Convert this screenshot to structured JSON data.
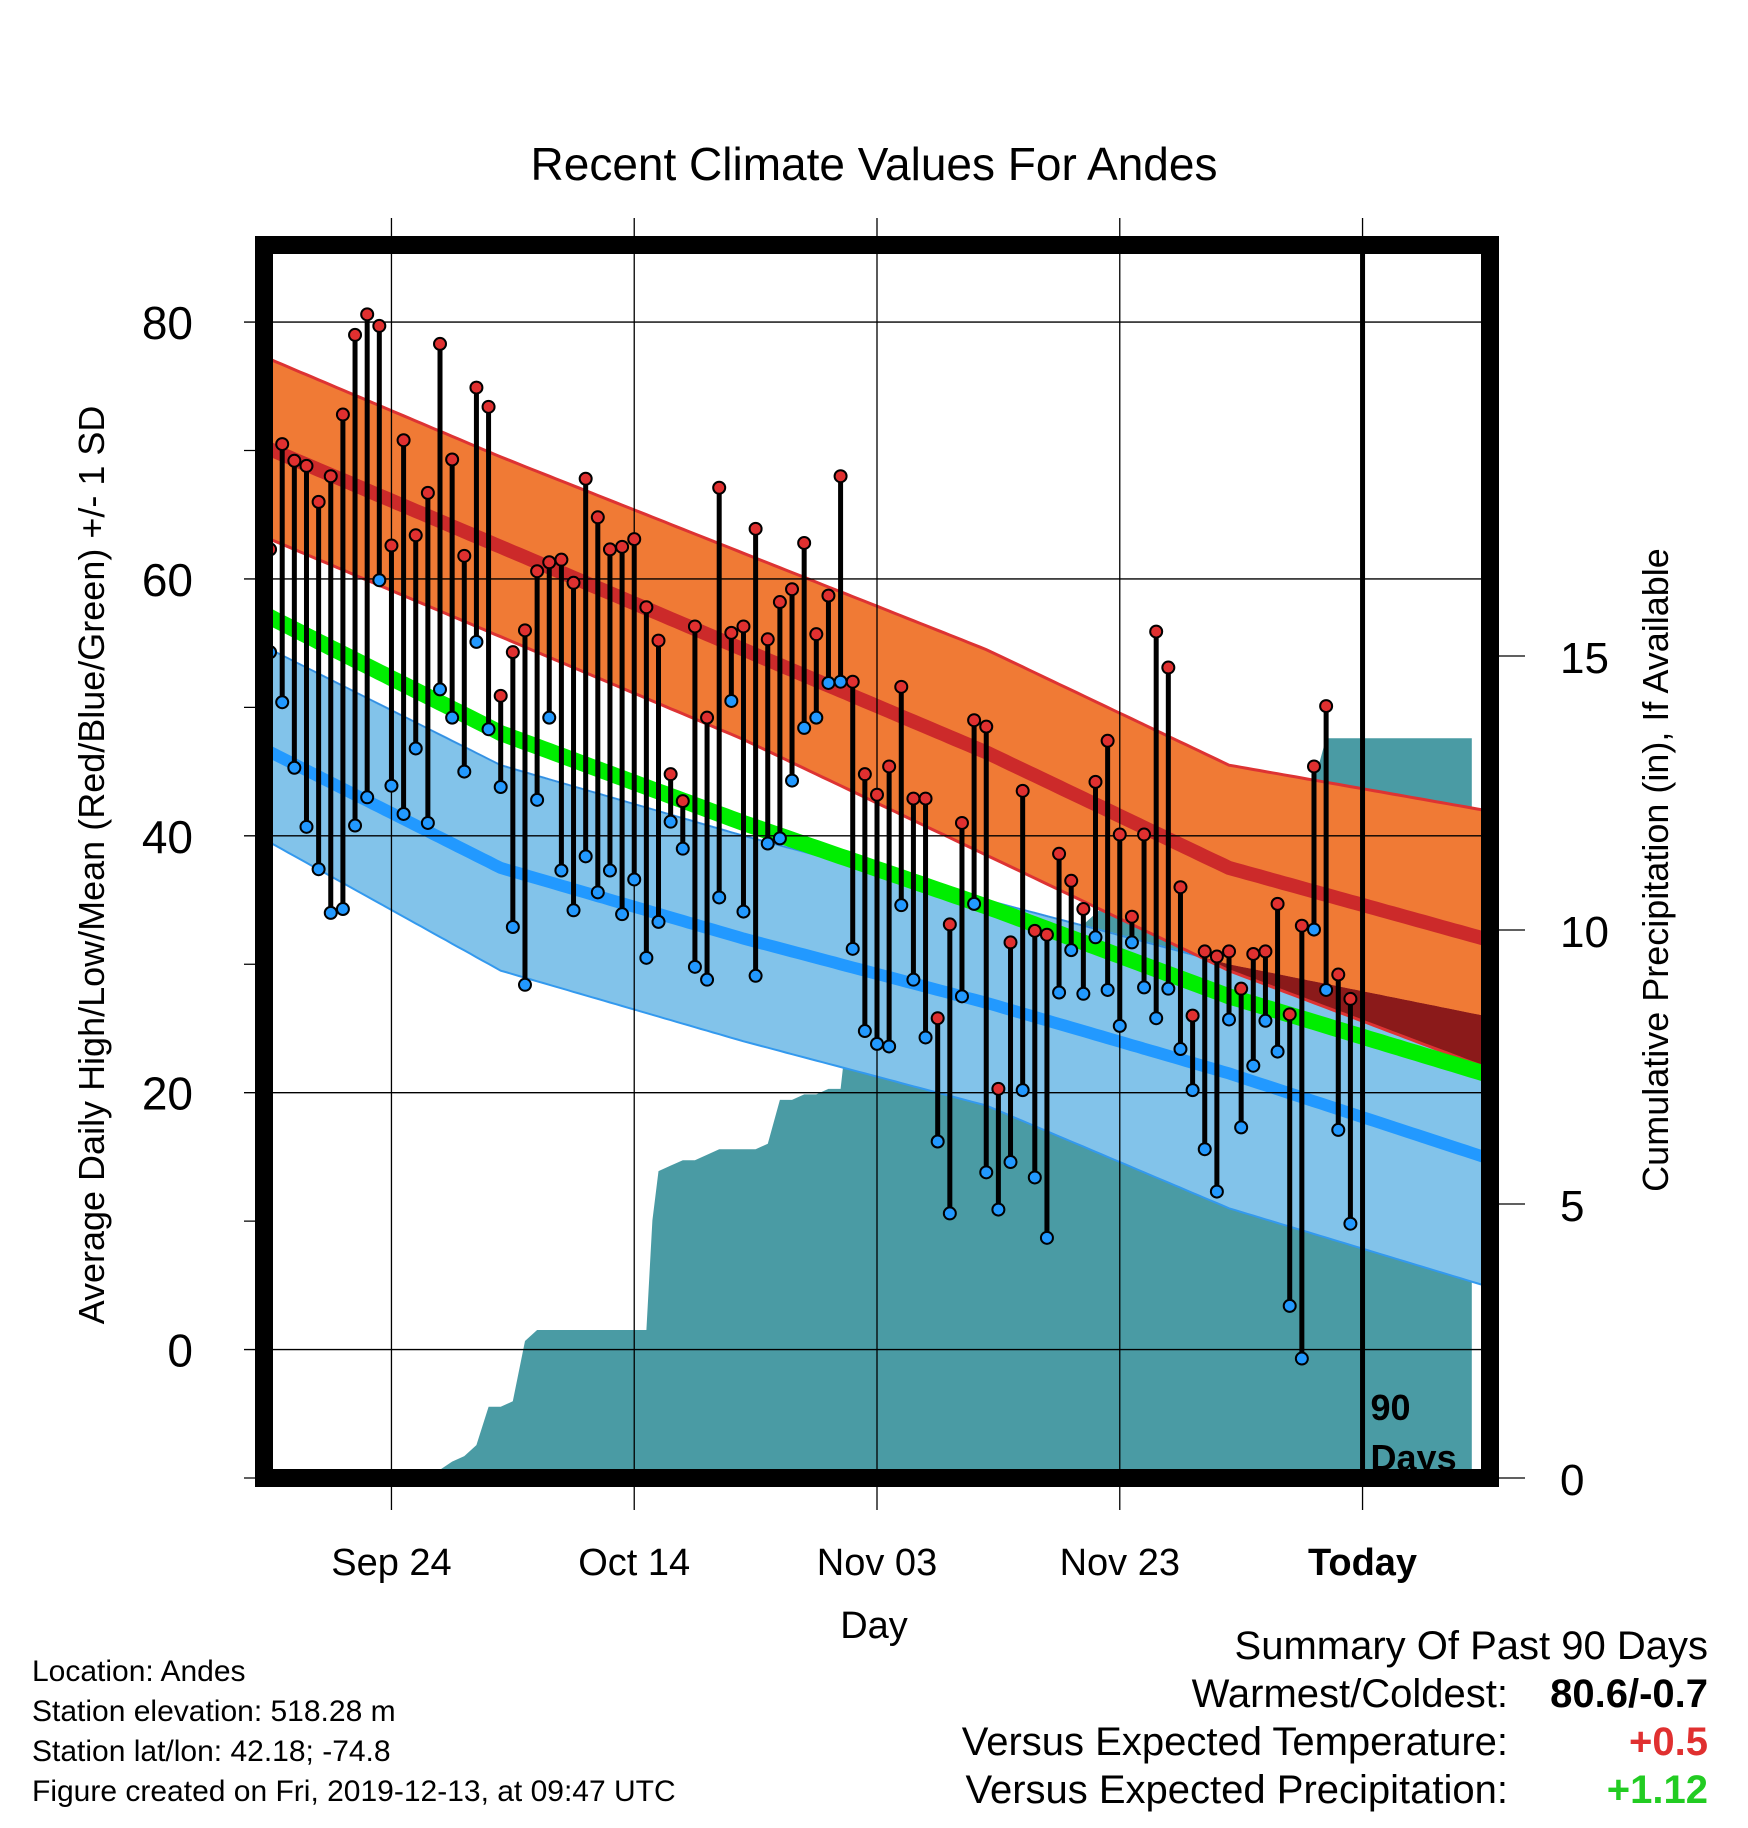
{
  "title": "Recent Climate Values For Andes",
  "chart_data": {
    "type": "line",
    "title": "Recent Climate Values For Andes",
    "xlabel": "Day",
    "ylabel": "Average Daily High/Low/Mean (Red/Blue/Green) +/- 1 SD",
    "y2label": "Cumulative Precipitation (in), If Available",
    "x_tick_labels": [
      "Sep 24",
      "Oct 14",
      "Nov 03",
      "Nov 23",
      "Today"
    ],
    "x_tick_days": [
      11,
      31,
      51,
      71,
      91
    ],
    "xlim": [
      0.5,
      101.5
    ],
    "ylim": [
      -10,
      86
    ],
    "y_ticks": [
      0,
      20,
      40,
      60,
      80
    ],
    "y2lim": [
      0,
      22.5
    ],
    "y2_ticks": [
      0,
      5,
      10,
      15
    ],
    "grid": true,
    "today_label": "90\nDays",
    "colors": {
      "high": "#e03030",
      "low": "#2299ff",
      "mean": "#00ee00",
      "high_band": "#f07a35",
      "low_band": "#82c3ea",
      "overlap": "#8b1a1a",
      "precip": "#4a9ba4",
      "stem": "#000000"
    },
    "normals": {
      "x": [
        0,
        20,
        40,
        60,
        80,
        101
      ],
      "high": [
        70.5,
        62.5,
        54.5,
        46.5,
        37.5,
        32.0
      ],
      "high_upper": [
        77.5,
        69.5,
        62.0,
        54.5,
        45.5,
        42.0
      ],
      "high_lower": [
        63.5,
        55.5,
        47.5,
        38.5,
        29.5,
        22.0
      ],
      "low": [
        47.0,
        37.5,
        32.0,
        27.0,
        21.5,
        15.0
      ],
      "low_upper": [
        55.0,
        45.5,
        40.0,
        35.0,
        30.0,
        26.0
      ],
      "low_lower": [
        40.0,
        29.5,
        24.0,
        19.0,
        11.0,
        5.0
      ],
      "mean": [
        57.5,
        48.0,
        41.0,
        34.5,
        27.5,
        21.5
      ]
    },
    "daily": {
      "day": [
        1,
        2,
        3,
        4,
        5,
        6,
        7,
        8,
        9,
        10,
        11,
        12,
        13,
        14,
        15,
        16,
        17,
        18,
        19,
        20,
        21,
        22,
        23,
        24,
        25,
        26,
        27,
        28,
        29,
        30,
        31,
        32,
        33,
        34,
        35,
        36,
        37,
        38,
        39,
        40,
        41,
        42,
        43,
        44,
        45,
        46,
        47,
        48,
        49,
        50,
        51,
        52,
        53,
        54,
        55,
        56,
        57,
        58,
        59,
        60,
        61,
        62,
        63,
        64,
        65,
        66,
        67,
        68,
        69,
        70,
        71,
        72,
        73,
        74,
        75,
        76,
        77,
        78,
        79,
        80,
        81,
        82,
        83,
        84,
        85,
        86,
        87,
        88,
        89,
        90
      ],
      "high": [
        62.3,
        70.5,
        69.2,
        68.8,
        66.0,
        68.0,
        72.8,
        79.0,
        80.6,
        79.7,
        62.6,
        70.8,
        63.4,
        66.7,
        78.3,
        69.3,
        61.8,
        74.9,
        73.4,
        50.9,
        54.3,
        56.0,
        60.6,
        61.3,
        61.5,
        59.7,
        67.8,
        64.8,
        62.3,
        62.5,
        63.1,
        57.8,
        55.2,
        44.8,
        42.7,
        56.3,
        49.2,
        67.1,
        55.8,
        56.3,
        63.9,
        55.3,
        58.2,
        59.2,
        62.8,
        55.7,
        58.7,
        68.0,
        52.0,
        44.8,
        43.2,
        45.4,
        51.6,
        42.9,
        42.9,
        25.8,
        33.1,
        41.0,
        49.0,
        48.5,
        20.3,
        31.7,
        43.5,
        32.6,
        32.3,
        38.6,
        36.5,
        34.3,
        44.2,
        47.4,
        40.1,
        33.7,
        40.1,
        55.9,
        53.1,
        36.0,
        26.0,
        31.0,
        30.6,
        31.0,
        28.1,
        30.8,
        31.0,
        34.7,
        26.1,
        33.0,
        45.4,
        50.1,
        29.2,
        27.3
      ],
      "low": [
        54.3,
        50.4,
        45.3,
        40.7,
        37.4,
        34.0,
        34.3,
        40.8,
        43.0,
        59.9,
        43.9,
        41.7,
        46.8,
        41.0,
        51.4,
        49.2,
        45.0,
        55.1,
        48.3,
        43.8,
        32.9,
        28.4,
        42.8,
        49.2,
        37.3,
        34.2,
        38.4,
        35.6,
        37.3,
        33.9,
        36.6,
        30.5,
        33.3,
        41.1,
        39.0,
        29.8,
        28.8,
        35.2,
        50.5,
        34.1,
        29.1,
        39.4,
        39.8,
        44.3,
        48.4,
        49.2,
        51.9,
        52.0,
        31.2,
        24.8,
        23.8,
        23.6,
        34.6,
        28.8,
        24.3,
        16.2,
        10.6,
        27.5,
        34.7,
        13.8,
        10.9,
        14.6,
        20.2,
        13.4,
        8.7,
        27.8,
        31.1,
        27.7,
        32.1,
        28.0,
        25.2,
        31.7,
        28.2,
        25.8,
        28.1,
        23.4,
        20.2,
        15.6,
        12.3,
        25.7,
        17.3,
        22.1,
        25.6,
        23.2,
        3.4,
        -0.7,
        32.7,
        28.0,
        17.1,
        9.8
      ]
    },
    "precip": {
      "day": [
        0,
        10,
        11,
        12,
        12.5,
        15,
        16,
        17,
        18,
        19,
        20,
        21,
        22,
        23,
        24,
        25,
        26,
        27,
        28,
        29,
        30,
        31,
        32,
        32.5,
        33,
        34,
        35,
        36,
        37,
        38,
        39,
        40,
        41,
        42,
        43,
        44,
        45,
        46,
        47,
        48,
        48.5,
        49,
        50,
        51,
        52,
        53,
        54,
        55,
        56,
        57,
        58,
        59,
        60,
        61,
        62,
        63,
        64,
        65,
        66,
        67,
        68,
        69,
        70,
        71,
        72,
        73,
        74,
        75,
        76,
        77,
        78,
        79,
        80,
        81,
        82,
        83,
        84,
        85,
        86,
        87,
        87.5,
        88,
        89,
        90,
        91,
        100
      ],
      "value": [
        0,
        0,
        0.05,
        0.05,
        0.1,
        0.15,
        0.3,
        0.4,
        0.6,
        1.3,
        1.3,
        1.4,
        2.5,
        2.7,
        2.7,
        2.7,
        2.7,
        2.7,
        2.7,
        2.7,
        2.7,
        2.7,
        2.7,
        4.7,
        5.6,
        5.7,
        5.8,
        5.8,
        5.9,
        6.0,
        6.0,
        6.0,
        6.0,
        6.1,
        6.9,
        6.9,
        7.0,
        7.0,
        7.1,
        7.1,
        8.1,
        9.1,
        9.1,
        9.1,
        9.2,
        9.2,
        9.2,
        9.4,
        9.4,
        9.4,
        9.5,
        9.5,
        9.5,
        9.6,
        9.6,
        9.6,
        9.6,
        9.9,
        10.0,
        10.0,
        10.1,
        10.3,
        10.5,
        10.8,
        10.8,
        11.1,
        11.3,
        11.3,
        11.4,
        11.6,
        12.1,
        12.2,
        12.3,
        12.4,
        12.6,
        12.7,
        12.7,
        12.7,
        12.7,
        12.7,
        13.1,
        13.5,
        13.5,
        13.5,
        13.5,
        13.5
      ]
    }
  },
  "info": {
    "location": "Location: Andes",
    "elevation": "Station elevation: 518.28 m",
    "latlon": "Station lat/lon: 42.18; -74.8",
    "created": "Figure created on Fri, 2019-12-13, at 09:47 UTC"
  },
  "summary": {
    "title": "Summary Of Past 90 Days",
    "warmest_label": "Warmest/Coldest:",
    "warmest_value": "80.6/-0.7",
    "temp_label": "Versus Expected Temperature:",
    "temp_value": "+0.5",
    "temp_color": "#e03030",
    "precip_label": "Versus Expected Precipitation:",
    "precip_value": "+1.12",
    "precip_color": "#22cc22"
  }
}
